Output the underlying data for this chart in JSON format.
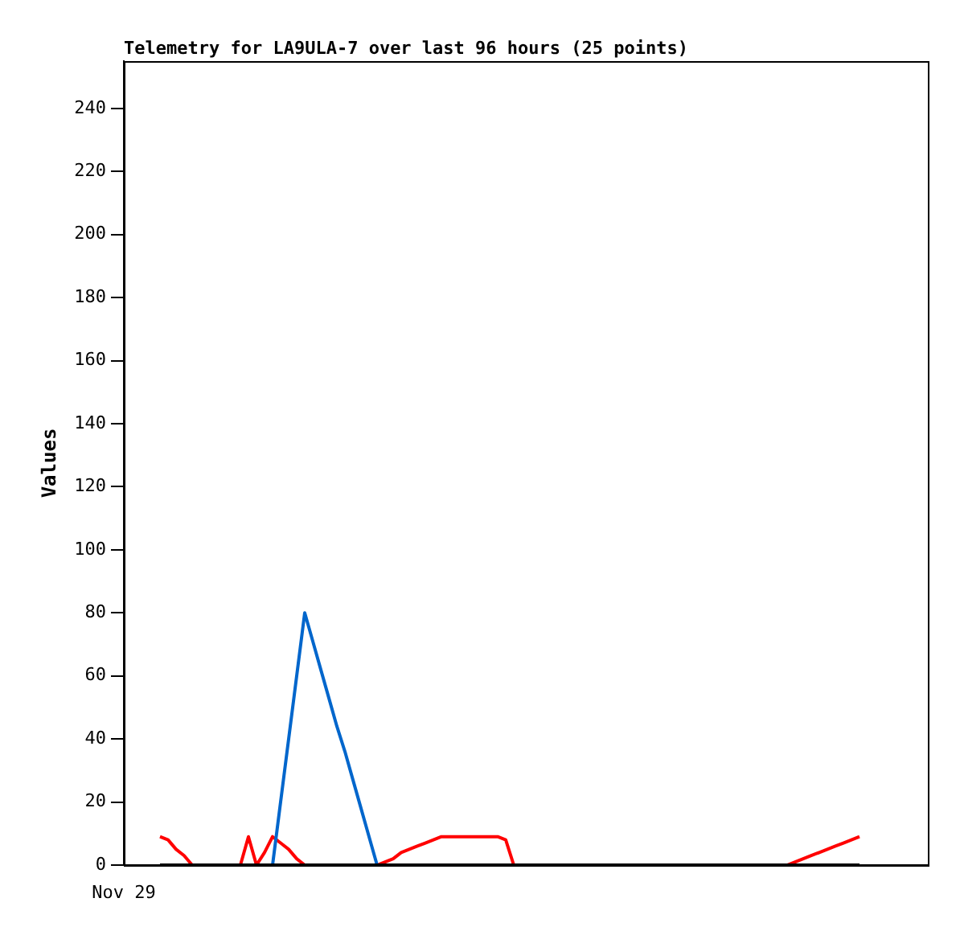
{
  "chart_data": {
    "type": "line",
    "title": "Telemetry for LA9ULA-7 over last 96 hours (25 points)",
    "ylabel": "Values",
    "annotations": [
      "Nov 29"
    ],
    "categories": [
      null,
      null,
      null,
      null,
      null,
      null,
      null,
      null,
      null,
      null,
      null,
      null,
      null,
      null,
      null,
      null,
      null,
      null,
      null,
      null,
      null,
      null,
      null,
      null,
      null,
      null,
      null,
      null,
      null,
      null,
      null,
      null,
      null,
      null,
      null,
      null,
      null,
      null,
      null,
      null,
      null,
      null,
      null,
      null,
      null,
      null,
      null,
      null,
      null,
      null,
      null,
      null,
      null,
      null,
      null,
      null,
      null,
      null,
      null,
      null,
      null,
      null,
      null,
      null,
      null,
      null,
      null,
      null,
      null,
      null,
      null,
      null,
      null,
      null,
      null,
      null,
      null,
      null,
      null,
      null,
      null,
      null,
      null,
      null,
      null,
      null,
      null,
      null,
      null,
      null,
      null,
      null,
      null,
      null,
      null,
      null,
      null,
      null,
      null,
      null
    ],
    "ylim": [
      0,
      255
    ],
    "yticks": [
      0,
      20,
      40,
      60,
      80,
      100,
      120,
      140,
      160,
      180,
      200,
      220,
      240
    ],
    "grid": false,
    "legend": false,
    "marker": "none",
    "line_style": "solid",
    "series": [
      {
        "color": "#ff0000",
        "values": [
          null,
          null,
          null,
          null,
          9,
          8,
          5,
          3,
          0,
          0,
          0,
          0,
          0,
          0,
          0,
          9,
          0,
          4,
          9,
          7,
          5,
          2,
          0,
          0,
          0,
          0,
          0,
          0,
          0,
          0,
          0,
          0,
          1,
          2,
          4,
          5,
          6,
          7,
          8,
          9,
          9,
          9,
          9,
          9,
          9,
          9,
          9,
          8,
          0,
          0,
          0,
          0,
          0,
          0,
          0,
          0,
          0,
          0,
          0,
          0,
          0,
          0,
          0,
          0,
          0,
          0,
          0,
          0,
          0,
          0,
          0,
          0,
          0,
          0,
          0,
          0,
          0,
          0,
          0,
          0,
          0,
          0,
          0,
          1,
          2,
          3,
          4,
          5,
          6,
          7,
          8,
          9,
          null,
          null,
          null,
          null,
          null,
          null,
          null,
          null
        ]
      },
      {
        "color": "#0066cc",
        "values": [
          null,
          null,
          null,
          null,
          null,
          null,
          null,
          null,
          null,
          null,
          null,
          null,
          null,
          null,
          null,
          null,
          null,
          null,
          0,
          20,
          40,
          60,
          80,
          71,
          62,
          53,
          44,
          36,
          27,
          18,
          9,
          0,
          null,
          null,
          null,
          null,
          null,
          null,
          null,
          null,
          null,
          null,
          null,
          null,
          null,
          null,
          null,
          null,
          null,
          null,
          null,
          null,
          null,
          null,
          null,
          null,
          null,
          null,
          null,
          null,
          null,
          null,
          null,
          null,
          null,
          null,
          null,
          null,
          null,
          null,
          null,
          null,
          null,
          null,
          null,
          null,
          null,
          null,
          null,
          null,
          null,
          null,
          null,
          null,
          null,
          null,
          null,
          null,
          null,
          null,
          null,
          null,
          null,
          null,
          null,
          null,
          null,
          null,
          null,
          null
        ]
      },
      {
        "color": "#000000",
        "values": [
          null,
          null,
          null,
          null,
          0,
          0,
          0,
          0,
          0,
          0,
          0,
          0,
          0,
          0,
          0,
          0,
          0,
          0,
          0,
          0,
          0,
          0,
          0,
          0,
          0,
          0,
          0,
          0,
          0,
          0,
          0,
          0,
          0,
          0,
          0,
          0,
          0,
          0,
          0,
          0,
          0,
          0,
          0,
          0,
          0,
          0,
          0,
          0,
          0,
          0,
          0,
          0,
          0,
          0,
          0,
          0,
          0,
          0,
          0,
          0,
          0,
          0,
          0,
          0,
          0,
          0,
          0,
          0,
          0,
          0,
          0,
          0,
          0,
          0,
          0,
          0,
          0,
          0,
          0,
          0,
          0,
          0,
          0,
          0,
          0,
          0,
          0,
          0,
          0,
          0,
          0,
          0,
          null,
          null,
          null,
          null,
          null,
          null,
          null,
          null
        ]
      }
    ]
  }
}
